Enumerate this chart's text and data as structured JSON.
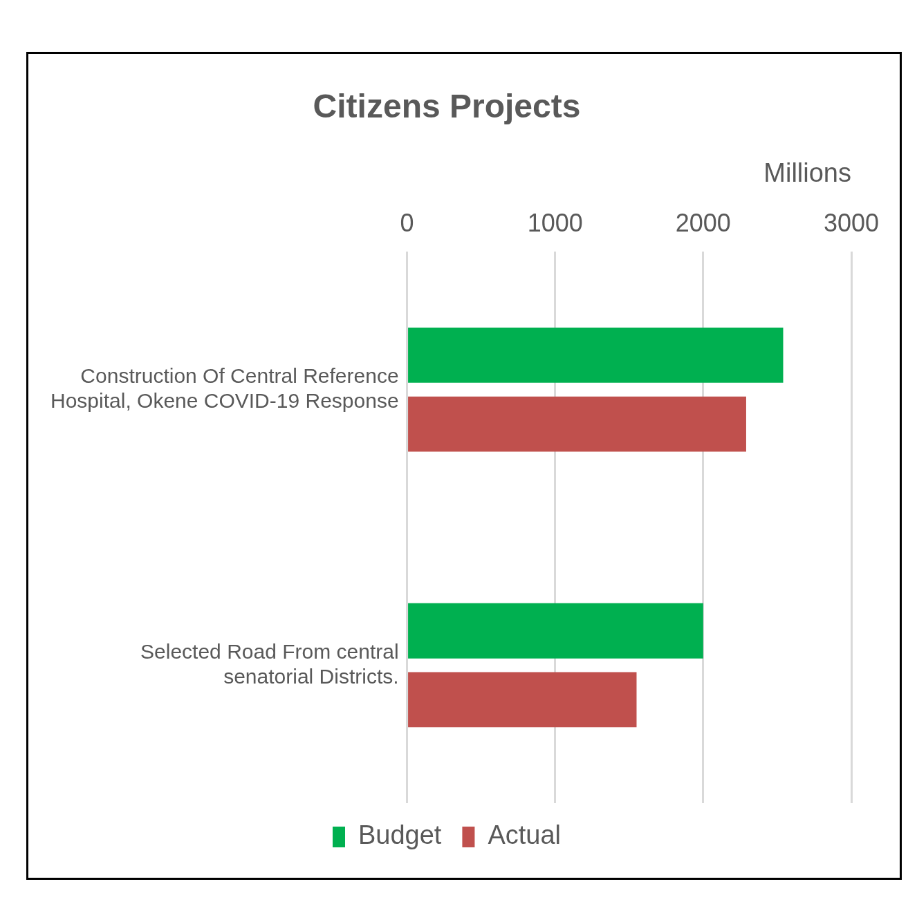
{
  "chart_data": {
    "type": "bar",
    "orientation": "horizontal",
    "title": "Citizens Projects",
    "xlabel": "Millions",
    "categories": [
      "Construction Of Central Reference Hospital, Okene COVID-19 Response",
      "Selected Road From central senatorial Districts."
    ],
    "series": [
      {
        "name": "Budget",
        "color": "#00b050",
        "values": [
          2540,
          2000
        ]
      },
      {
        "name": "Actual",
        "color": "#c0504d",
        "values": [
          2290,
          1550
        ]
      }
    ],
    "xlim": [
      0,
      3000
    ],
    "xticks": [
      0,
      1000,
      2000,
      3000
    ],
    "grid": "x",
    "legend": "bottom"
  }
}
